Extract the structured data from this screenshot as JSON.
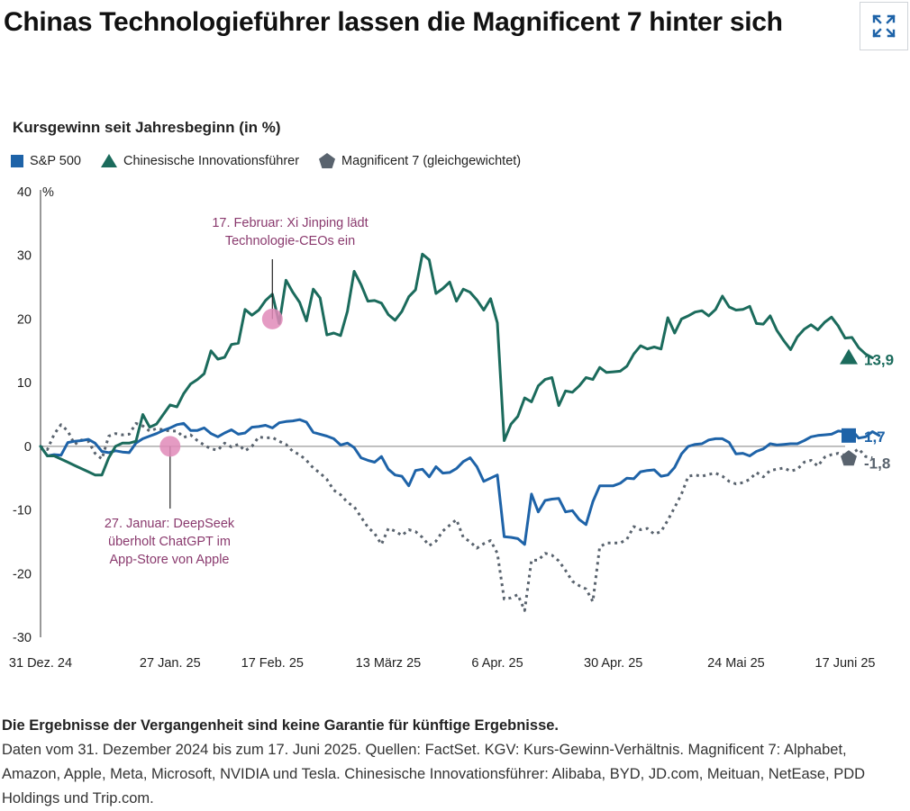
{
  "title": "Chinas Technologieführer lassen die Magnificent 7 hinter sich",
  "chart_data": {
    "type": "line",
    "title": "Chinas Technologieführer lassen die Magnificent 7 hinter sich",
    "subtitle": "Kursgewinn seit Jahresbeginn (in %)",
    "ylabel": "%",
    "ylim": [
      -30,
      40
    ],
    "yticks": [
      40,
      30,
      20,
      10,
      0,
      -10,
      -20,
      -30
    ],
    "x_ticks": [
      "31 Dez. 24",
      "27 Jan. 25",
      "17 Feb. 25",
      "13 März 25",
      "6 Apr. 25",
      "30 Apr. 25",
      "24 Mai 25",
      "17 Juni 25"
    ],
    "x_tick_index": [
      0,
      19,
      34,
      51,
      67,
      84,
      102,
      118
    ],
    "x_count": 119,
    "series": [
      {
        "name": "S&P 500",
        "color": "#1e63a8",
        "style": "solid",
        "marker": "square",
        "end_label": "1,7",
        "values": [
          0,
          -1.5,
          -1.3,
          -1.4,
          0.6,
          0.8,
          0.9,
          1.1,
          0.5,
          -0.8,
          -1,
          -0.7,
          -0.9,
          -1,
          0.5,
          1.2,
          1.6,
          2,
          2.5,
          2.9,
          3.4,
          3.6,
          2.5,
          2.5,
          2.9,
          2,
          1.5,
          2.1,
          2.6,
          1.9,
          2.1,
          3,
          3.1,
          3.3,
          2.9,
          3.7,
          3.9,
          4,
          4.2,
          3.8,
          2.2,
          1.9,
          1.6,
          1.2,
          0.2,
          0.5,
          -0.2,
          -1.8,
          -2.2,
          -2.5,
          -1.6,
          -3.6,
          -4.5,
          -4.7,
          -6.2,
          -3.8,
          -3.6,
          -4.8,
          -3.2,
          -4.2,
          -4.1,
          -3.5,
          -2.4,
          -1.8,
          -3.2,
          -5.5,
          -5,
          -4.5,
          -14.2,
          -14.3,
          -14.5,
          -15.4,
          -7.5,
          -10.3,
          -8.5,
          -8.3,
          -8.2,
          -10.3,
          -10.1,
          -11.5,
          -12.3,
          -8.7,
          -6.2,
          -6.2,
          -6.2,
          -5.8,
          -5,
          -5.1,
          -4,
          -3.8,
          -3.7,
          -4.7,
          -4.5,
          -3.3,
          -1.2,
          0,
          0.3,
          0.4,
          1,
          1.2,
          1.2,
          0.6,
          -1.2,
          -1.1,
          -1.5,
          -0.8,
          -0.4,
          0.4,
          0.2,
          0.3,
          0.4,
          0.4,
          0.9,
          1.5,
          1.7,
          1.8,
          1.9,
          2.4,
          2.3,
          2.5,
          1.3,
          1.5,
          2.3,
          1.7
        ]
      },
      {
        "name": "Chinesische Innovationsführer",
        "color": "#1b6b5c",
        "style": "solid",
        "marker": "triangle",
        "end_label": "13,9",
        "values": [
          0,
          -1.5,
          -1.5,
          -2,
          -2.5,
          -3,
          -3.5,
          -4,
          -4.5,
          -4.5,
          -1.8,
          0,
          0.5,
          0.5,
          0.8,
          5,
          3,
          3.5,
          5,
          6.5,
          6.2,
          8.3,
          9.8,
          10.5,
          11.4,
          15,
          13.7,
          14,
          16,
          16.2,
          21.5,
          20.6,
          21.4,
          22.9,
          23.9,
          19.3,
          26.1,
          24.2,
          22.6,
          19.7,
          24.7,
          23.3,
          17.5,
          17.8,
          17.4,
          21.2,
          27.5,
          25.4,
          22.8,
          22.9,
          22.5,
          20.7,
          19.8,
          21.2,
          23.5,
          24.6,
          30.2,
          29.3,
          24,
          24.8,
          25.8,
          22.8,
          24.7,
          24.2,
          23,
          21.4,
          23.2,
          19.4,
          0.9,
          3.5,
          4.7,
          7.6,
          7,
          9.5,
          10.5,
          10.8,
          6.4,
          8.7,
          8.5,
          9.5,
          10.8,
          10.5,
          12.4,
          11.6,
          11.7,
          11.8,
          12.6,
          14.5,
          15.8,
          15.3,
          15.6,
          15.3,
          20.2,
          17.8,
          20,
          20.5,
          21.1,
          21.3,
          20.5,
          21.5,
          23.6,
          21.9,
          21.4,
          21.5,
          22,
          19.3,
          19.2,
          20.5,
          18.2,
          16.6,
          15.2,
          17.2,
          18.4,
          19.1,
          18.3,
          19.5,
          20.3,
          18.9,
          17,
          17.1,
          15.5,
          14.5,
          13.9
        ]
      },
      {
        "name": "Magnificent 7 (gleichgewichtet)",
        "color": "#59636e",
        "style": "dotted",
        "marker": "pentagon",
        "end_label": "-1,8",
        "values": [
          0,
          -0.5,
          1.9,
          3.4,
          2.4,
          0.3,
          1,
          0.8,
          -1.1,
          -2,
          1.6,
          2,
          1.8,
          1.9,
          3.6,
          3.2,
          2.4,
          2.8,
          2.6,
          2.4,
          2.4,
          1.4,
          1.8,
          0.9,
          0.2,
          -0.4,
          -0.6,
          0.5,
          -0.1,
          0.3,
          -0.7,
          0,
          1.5,
          1.3,
          1.4,
          0.8,
          0.3,
          -0.8,
          -1.3,
          -2.2,
          -3.4,
          -4.2,
          -5.2,
          -6.9,
          -7.6,
          -8.8,
          -9.5,
          -11.1,
          -12.7,
          -13.7,
          -15.4,
          -12.9,
          -13.3,
          -14,
          -13.1,
          -13.4,
          -14.3,
          -15.6,
          -14.9,
          -13.3,
          -12.4,
          -11.5,
          -14.3,
          -15,
          -16,
          -15.3,
          -14.8,
          -16.8,
          -24,
          -23.8,
          -23.3,
          -25.8,
          -17.9,
          -17.9,
          -16.8,
          -17.1,
          -18,
          -19.5,
          -21.2,
          -21.9,
          -22.4,
          -24.4,
          -15.8,
          -15.2,
          -15.2,
          -15.2,
          -14.6,
          -12.6,
          -13.1,
          -12.9,
          -13.8,
          -13.4,
          -11.6,
          -9.6,
          -7.5,
          -4.7,
          -4.5,
          -4.7,
          -4.4,
          -4.2,
          -4.7,
          -5.5,
          -5.9,
          -5.7,
          -5.2,
          -4.1,
          -4.8,
          -3.8,
          -3.6,
          -3.4,
          -3.9,
          -3.6,
          -2.5,
          -2.2,
          -3.1,
          -1.7,
          -1.3,
          -1.1,
          -1.4,
          -1.1,
          -0.4,
          -1.6,
          -1.8
        ]
      }
    ],
    "annotations": [
      {
        "text_lines": [
          "17. Februar: Xi Jinping lädt",
          "Technologie-CEOs ein"
        ],
        "index": 34,
        "y": 20
      },
      {
        "text_lines": [
          "27. Januar: DeepSeek",
          "überholt ChatGPT im",
          "App-Store von Apple"
        ],
        "index": 19,
        "y": 0
      }
    ]
  },
  "footer": {
    "disclaimer": "Die Ergebnisse der Vergangenheit sind keine Garantie für künftige Ergebnisse.",
    "notes": "Daten vom 31. Dezember 2024 bis zum 17. Juni 2025. Quellen: FactSet. KGV: Kurs-Gewinn-Verhältnis. Magnificent 7: Alphabet, Amazon, Apple, Meta, Microsoft, NVIDIA und Tesla. Chinesische Innovationsführer: Alibaba, BYD, JD.com, Meituan, NetEase, PDD Holdings und Trip.com."
  },
  "colors": {
    "sp500": "#1e63a8",
    "china": "#1b6b5c",
    "mag7": "#59636e",
    "annotation": "#8a3a6e",
    "annotation_dot": "#e08ab8"
  },
  "icons": {
    "expand": "expand-icon"
  }
}
